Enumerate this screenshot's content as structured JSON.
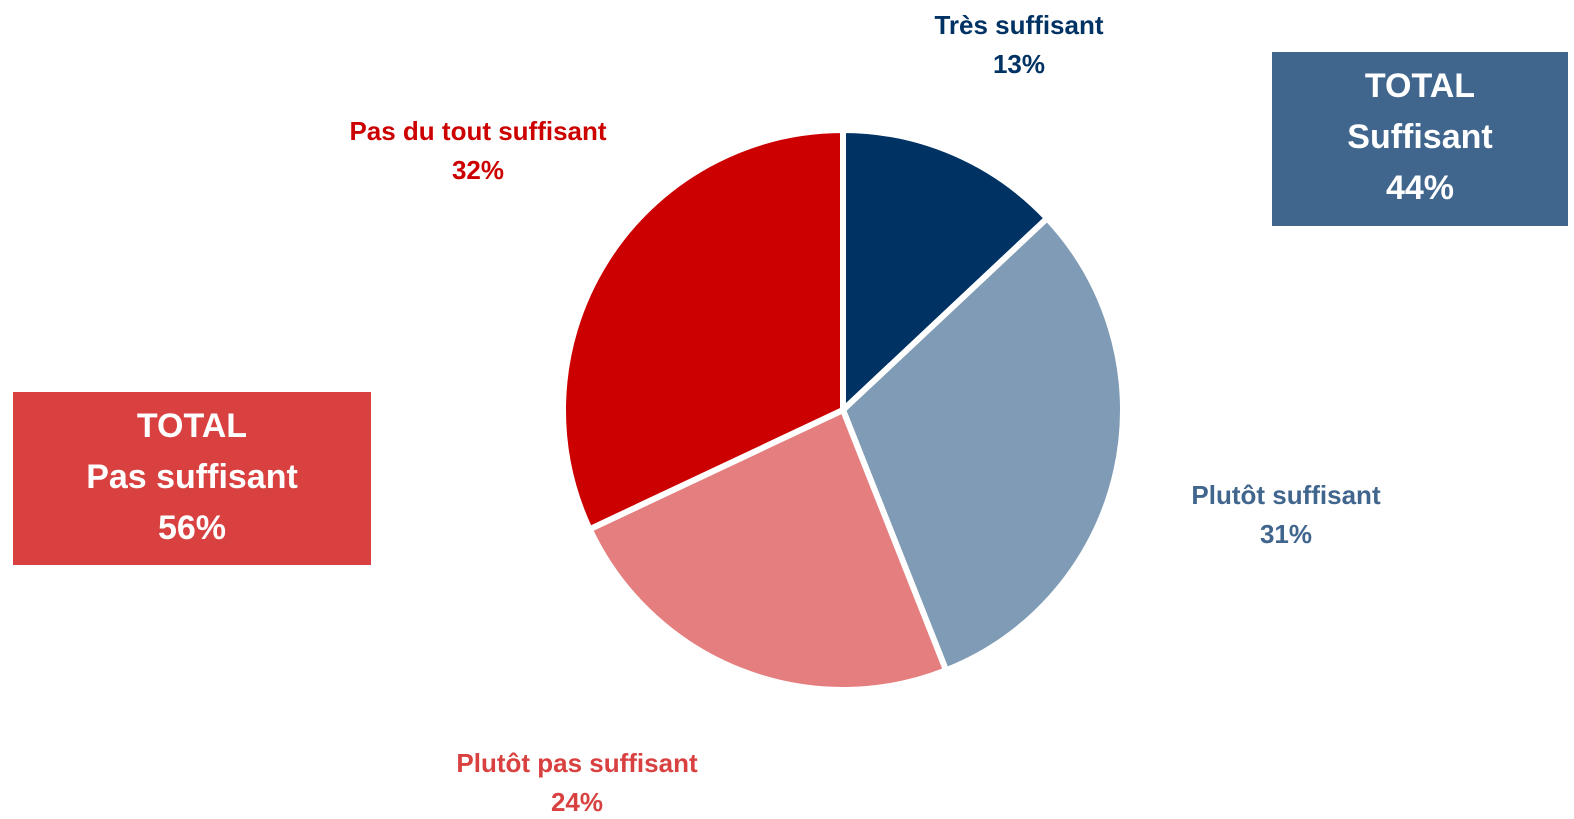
{
  "chart_data": {
    "type": "pie",
    "categories": [
      "Très suffisant",
      "Plutôt suffisant",
      "Plutôt pas suffisant",
      "Pas du tout suffisant"
    ],
    "values": [
      13,
      31,
      24,
      32
    ],
    "value_labels": [
      "13%",
      "31%",
      "24%",
      "32%"
    ],
    "colors": [
      "#003263",
      "#7f9bb5",
      "#e57f7f",
      "#cc0000"
    ],
    "label_colors": [
      "#003263",
      "#41668e",
      "#d94040",
      "#cc0000"
    ],
    "totals": [
      {
        "lines": [
          "TOTAL",
          "Suffisant"
        ],
        "value": 44,
        "value_label": "44%",
        "color": "#41668e"
      },
      {
        "lines": [
          "TOTAL",
          "Pas suffisant"
        ],
        "value": 56,
        "value_label": "56%",
        "color": "#d94040"
      }
    ]
  }
}
